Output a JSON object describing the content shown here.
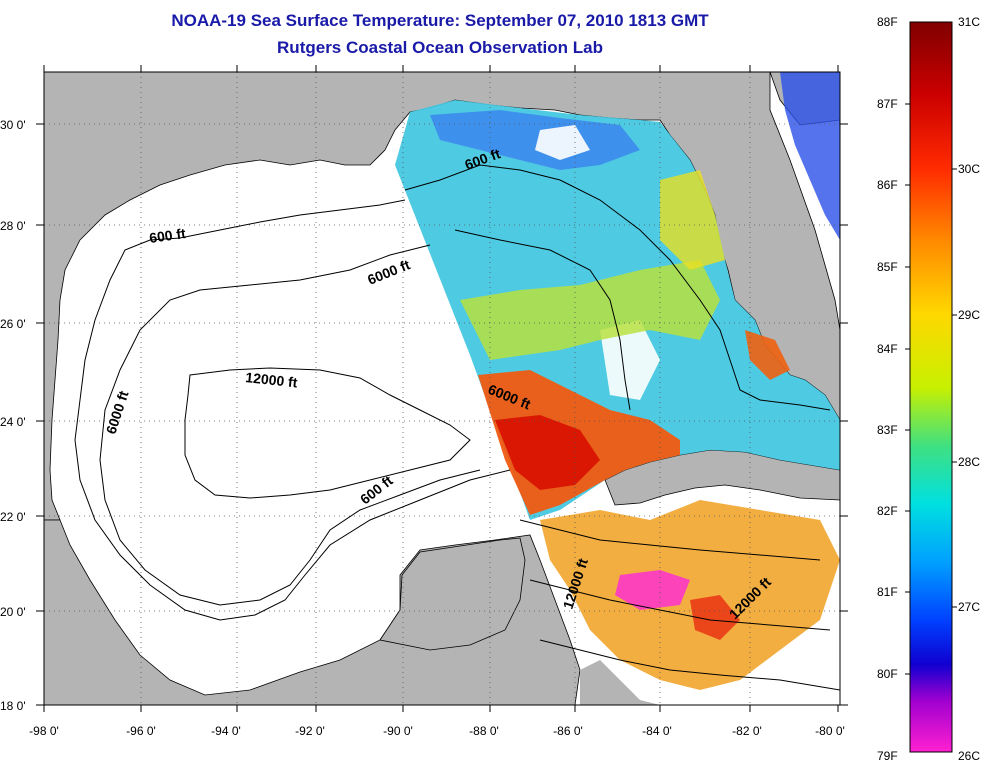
{
  "title": "NOAA-19 Sea Surface Temperature:  September 07, 2010 1813 GMT",
  "subtitle": "Rutgers Coastal Ocean Observation Lab",
  "map": {
    "lon_range": [
      -98,
      -80
    ],
    "lat_range": [
      18,
      31
    ],
    "x_ticks": [
      "-98 0'",
      "-96 0'",
      "-94 0'",
      "-92 0'",
      "-90 0'",
      "-88 0'",
      "-86 0'",
      "-84 0'",
      "-82 0'",
      "-80 0'"
    ],
    "y_ticks": [
      "18 0'",
      "20 0'",
      "22 0'",
      "24 0'",
      "26 0'",
      "28 0'",
      "30 0'"
    ],
    "grid": "dotted",
    "land_color": "#b4b4b4",
    "no_data_color": "#ffffff"
  },
  "contours": [
    {
      "label": "600 ft"
    },
    {
      "label": "6000 ft"
    },
    {
      "label": "12000 ft"
    },
    {
      "label": "6000 ft"
    },
    {
      "label": "600 ft"
    },
    {
      "label": "6000 ft"
    },
    {
      "label": "600 ft"
    },
    {
      "label": "12000 ft"
    },
    {
      "label": "12000 ft"
    }
  ],
  "colorbar": {
    "f_labels": [
      "88F",
      "87F",
      "86F",
      "85F",
      "84F",
      "83F",
      "82F",
      "81F",
      "80F",
      "79F"
    ],
    "c_labels": [
      "31C",
      "30C",
      "29C",
      "28C",
      "27C",
      "26C"
    ],
    "range_c": [
      26,
      31
    ]
  }
}
